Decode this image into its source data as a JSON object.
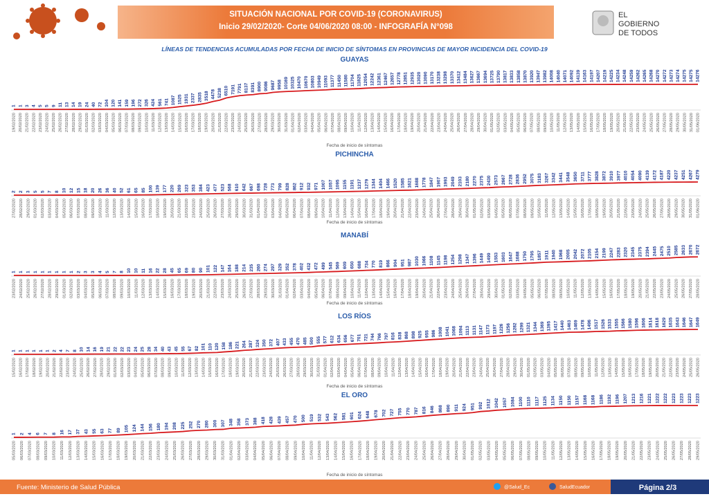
{
  "header": {
    "title_line1": "SITUACIÓN NACIONAL POR  COVID-19 (CORONAVIRUS)",
    "title_line2": "Inicio 29/02/2020- Corte 04/06/2020 08:00  - INFOGRAFÍA N°098",
    "logo_line1": "EL",
    "logo_line2": "GOBIERNO",
    "logo_line3": "DE TODOS",
    "subtitle": "LÍNEAS DE TENDENCIAS ACUMULADAS POR FECHA DE INICIO DE SÍNTOMAS EN PROVINCIAS DE MAYOR INCIDENCIA DEL COVID-19"
  },
  "footer": {
    "source": "Fuente: Ministerio de Salud Pública",
    "twitter": "@Salud_Ec",
    "facebook": "SaludEcuador",
    "page": "Página 2/3"
  },
  "chart_data": [
    {
      "type": "line",
      "title": "GUAYAS",
      "x_label": "Fecha de inicio de síntomas",
      "color": "#d7191c",
      "label_color": "#1f3a93",
      "ylim": [
        0,
        15000
      ],
      "categories": [
        "19/02/2020",
        "20/02/2020",
        "21/02/2020",
        "22/02/2020",
        "23/02/2020",
        "24/02/2020",
        "25/02/2020",
        "26/02/2020",
        "27/02/2020",
        "28/02/2020",
        "29/02/2020",
        "01/03/2020",
        "02/03/2020",
        "03/03/2020",
        "04/03/2020",
        "05/03/2020",
        "06/03/2020",
        "07/03/2020",
        "08/03/2020",
        "09/03/2020",
        "10/03/2020",
        "11/03/2020",
        "12/03/2020",
        "13/03/2020",
        "14/03/2020",
        "15/03/2020",
        "16/03/2020",
        "17/03/2020",
        "18/03/2020",
        "19/03/2020",
        "20/03/2020",
        "21/03/2020",
        "22/03/2020",
        "23/03/2020",
        "24/03/2020",
        "25/03/2020",
        "26/03/2020",
        "27/03/2020",
        "28/03/2020",
        "29/03/2020",
        "30/03/2020",
        "31/03/2020",
        "01/04/2020",
        "02/04/2020",
        "03/04/2020",
        "04/04/2020",
        "05/04/2020",
        "06/04/2020",
        "07/04/2020",
        "08/04/2020",
        "09/04/2020",
        "10/04/2020",
        "11/04/2020",
        "12/04/2020",
        "13/04/2020",
        "14/04/2020",
        "15/04/2020",
        "16/04/2020",
        "17/04/2020",
        "18/04/2020",
        "19/04/2020",
        "20/04/2020",
        "21/04/2020",
        "22/04/2020",
        "23/04/2020",
        "24/04/2020",
        "25/04/2020",
        "26/04/2020",
        "27/04/2020",
        "28/04/2020",
        "29/04/2020",
        "30/04/2020",
        "01/05/2020",
        "02/05/2020",
        "03/05/2020",
        "04/05/2020",
        "05/05/2020",
        "06/05/2020",
        "07/05/2020",
        "08/05/2020",
        "09/05/2020",
        "10/05/2020",
        "11/05/2020",
        "12/05/2020",
        "13/05/2020",
        "14/05/2020",
        "15/05/2020",
        "16/05/2020",
        "17/05/2020",
        "18/05/2020",
        "19/05/2020",
        "20/05/2020",
        "21/05/2020",
        "22/05/2020",
        "23/05/2020",
        "24/05/2020",
        "25/05/2020",
        "26/05/2020",
        "27/05/2020",
        "28/05/2020",
        "29/05/2020",
        "30/05/2020",
        "31/05/2020",
        "01/06/2020"
      ],
      "values": [
        1,
        1,
        3,
        4,
        5,
        5,
        9,
        11,
        13,
        14,
        19,
        24,
        40,
        72,
        104,
        120,
        141,
        159,
        196,
        272,
        326,
        424,
        561,
        741,
        1087,
        1525,
        1931,
        2337,
        2835,
        3518,
        4478,
        5238,
        6510,
        7191,
        7791,
        8137,
        8391,
        8900,
        9086,
        9687,
        9958,
        10169,
        10325,
        10470,
        10670,
        10803,
        10949,
        11093,
        11377,
        11450,
        11580,
        11704,
        11825,
        12054,
        12242,
        12361,
        12467,
        12657,
        12778,
        12851,
        12935,
        13020,
        13090,
        13170,
        13238,
        13298,
        13370,
        13412,
        13484,
        13627,
        13667,
        13694,
        13725,
        13790,
        13817,
        13833,
        13858,
        13870,
        13920,
        13947,
        13982,
        14008,
        14040,
        14071,
        14092,
        14139,
        14163,
        14197,
        14207,
        14219,
        14225,
        14234,
        14248,
        14259,
        14262,
        14265,
        14268,
        14270,
        14272,
        14273,
        14274,
        14275,
        14275,
        14276
      ]
    },
    {
      "type": "line",
      "title": "PICHINCHA",
      "x_label": "Fecha de inicio de síntomas",
      "color": "#d7191c",
      "label_color": "#1f3a93",
      "ylim": [
        0,
        4500
      ],
      "categories": [
        "27/02/2020",
        "28/02/2020",
        "29/02/2020",
        "01/03/2020",
        "02/03/2020",
        "03/03/2020",
        "04/03/2020",
        "05/03/2020",
        "06/03/2020",
        "07/03/2020",
        "08/03/2020",
        "09/03/2020",
        "10/03/2020",
        "11/03/2020",
        "12/03/2020",
        "13/03/2020",
        "14/03/2020",
        "15/03/2020",
        "16/03/2020",
        "17/03/2020",
        "18/03/2020",
        "19/03/2020",
        "20/03/2020",
        "21/03/2020",
        "22/03/2020",
        "23/03/2020",
        "24/03/2020",
        "25/03/2020",
        "26/03/2020",
        "27/03/2020",
        "28/03/2020",
        "29/03/2020",
        "30/03/2020",
        "31/03/2020",
        "01/04/2020",
        "02/04/2020",
        "03/04/2020",
        "04/04/2020",
        "05/04/2020",
        "06/04/2020",
        "07/04/2020",
        "08/04/2020",
        "09/04/2020",
        "10/04/2020",
        "11/04/2020",
        "12/04/2020",
        "13/04/2020",
        "14/04/2020",
        "15/04/2020",
        "16/04/2020",
        "17/04/2020",
        "18/04/2020",
        "19/04/2020",
        "20/04/2020",
        "21/04/2020",
        "22/04/2020",
        "23/04/2020",
        "24/04/2020",
        "25/04/2020",
        "26/04/2020",
        "27/04/2020",
        "28/04/2020",
        "29/04/2020",
        "30/04/2020",
        "01/05/2020",
        "02/05/2020",
        "03/05/2020",
        "04/05/2020",
        "05/05/2020",
        "06/05/2020",
        "07/05/2020",
        "08/05/2020",
        "09/05/2020",
        "10/05/2020",
        "11/05/2020",
        "12/05/2020",
        "13/05/2020",
        "14/05/2020",
        "15/05/2020",
        "16/05/2020",
        "17/05/2020",
        "18/05/2020",
        "19/05/2020",
        "20/05/2020",
        "21/05/2020",
        "22/05/2020",
        "23/05/2020",
        "24/05/2020",
        "25/05/2020",
        "26/05/2020",
        "27/05/2020",
        "28/05/2020",
        "29/05/2020",
        "30/05/2020",
        "31/05/2020",
        "01/06/2020"
      ],
      "values": [
        2,
        2,
        3,
        5,
        5,
        7,
        8,
        10,
        12,
        15,
        18,
        20,
        26,
        36,
        40,
        52,
        61,
        65,
        85,
        100,
        139,
        177,
        220,
        269,
        323,
        353,
        384,
        423,
        477,
        523,
        568,
        610,
        642,
        667,
        698,
        728,
        773,
        799,
        828,
        862,
        912,
        932,
        971,
        1007,
        1057,
        1095,
        1155,
        1191,
        1237,
        1279,
        1344,
        1404,
        1466,
        1520,
        1585,
        1621,
        1688,
        1778,
        1847,
        1907,
        1993,
        2049,
        2103,
        2180,
        2270,
        2375,
        2430,
        2573,
        2667,
        2728,
        2836,
        2952,
        3075,
        3183,
        3267,
        3342,
        3441,
        3548,
        3650,
        3711,
        3777,
        3828,
        3872,
        3910,
        3977,
        4010,
        4054,
        4090,
        4139,
        4172,
        4187,
        4220,
        4237,
        4251,
        4267,
        4279
      ]
    },
    {
      "type": "line",
      "title": "MANABÍ",
      "x_label": "Fecha de inicio de síntomas",
      "color": "#d7191c",
      "label_color": "#1f3a93",
      "ylim": [
        0,
        2800
      ],
      "categories": [
        "23/02/2020",
        "24/02/2020",
        "25/02/2020",
        "26/02/2020",
        "27/02/2020",
        "28/02/2020",
        "29/02/2020",
        "01/03/2020",
        "02/03/2020",
        "03/03/2020",
        "04/03/2020",
        "05/03/2020",
        "06/03/2020",
        "07/03/2020",
        "08/03/2020",
        "09/03/2020",
        "10/03/2020",
        "11/03/2020",
        "12/03/2020",
        "13/03/2020",
        "14/03/2020",
        "15/03/2020",
        "16/03/2020",
        "17/03/2020",
        "18/03/2020",
        "19/03/2020",
        "20/03/2020",
        "21/03/2020",
        "22/03/2020",
        "23/03/2020",
        "24/03/2020",
        "25/03/2020",
        "26/03/2020",
        "27/03/2020",
        "28/03/2020",
        "29/03/2020",
        "30/03/2020",
        "31/03/2020",
        "01/04/2020",
        "02/04/2020",
        "03/04/2020",
        "04/04/2020",
        "05/04/2020",
        "06/04/2020",
        "07/04/2020",
        "08/04/2020",
        "09/04/2020",
        "10/04/2020",
        "11/04/2020",
        "12/04/2020",
        "13/04/2020",
        "14/04/2020",
        "15/04/2020",
        "16/04/2020",
        "17/04/2020",
        "18/04/2020",
        "19/04/2020",
        "20/04/2020",
        "21/04/2020",
        "22/04/2020",
        "23/04/2020",
        "24/04/2020",
        "25/04/2020",
        "26/04/2020",
        "27/04/2020",
        "28/04/2020",
        "29/04/2020",
        "30/04/2020",
        "01/05/2020",
        "02/05/2020",
        "03/05/2020",
        "04/05/2020",
        "05/05/2020",
        "06/05/2020",
        "07/05/2020",
        "08/05/2020",
        "09/05/2020",
        "10/05/2020",
        "11/05/2020",
        "12/05/2020",
        "13/05/2020",
        "14/05/2020",
        "15/05/2020",
        "16/05/2020",
        "17/05/2020",
        "18/05/2020",
        "19/05/2020",
        "20/05/2020",
        "21/05/2020",
        "22/05/2020",
        "23/05/2020",
        "24/05/2020",
        "25/05/2020",
        "26/05/2020",
        "27/05/2020",
        "28/05/2020"
      ],
      "values": [
        1,
        1,
        1,
        1,
        1,
        1,
        1,
        1,
        1,
        2,
        3,
        3,
        4,
        5,
        7,
        8,
        10,
        10,
        11,
        16,
        22,
        28,
        45,
        65,
        69,
        80,
        90,
        101,
        122,
        147,
        164,
        188,
        214,
        235,
        260,
        274,
        297,
        329,
        352,
        378,
        402,
        432,
        472,
        499,
        545,
        569,
        609,
        650,
        688,
        734,
        770,
        819,
        866,
        904,
        951,
        987,
        1030,
        1066,
        1108,
        1145,
        1198,
        1254,
        1298,
        1347,
        1396,
        1449,
        1499,
        1553,
        1603,
        1647,
        1688,
        1750,
        1795,
        1857,
        1911,
        1940,
        1968,
        2005,
        2042,
        2072,
        2105,
        2154,
        2199,
        2247,
        2283,
        2320,
        2345,
        2375,
        2394,
        2445,
        2475,
        2510,
        2585,
        2633,
        2670,
        2672
      ]
    },
    {
      "type": "line",
      "title": "LOS RÍOS",
      "x_label": "Fecha de inicio de síntomas",
      "color": "#d7191c",
      "label_color": "#1f3a93",
      "ylim": [
        0,
        1700
      ],
      "categories": [
        "15/02/2020",
        "16/02/2020",
        "17/02/2020",
        "18/02/2020",
        "19/02/2020",
        "20/02/2020",
        "21/02/2020",
        "22/02/2020",
        "23/02/2020",
        "24/02/2020",
        "25/02/2020",
        "26/02/2020",
        "27/02/2020",
        "28/02/2020",
        "29/02/2020",
        "01/03/2020",
        "02/03/2020",
        "03/03/2020",
        "04/03/2020",
        "05/03/2020",
        "06/03/2020",
        "07/03/2020",
        "08/03/2020",
        "09/03/2020",
        "10/03/2020",
        "11/03/2020",
        "12/03/2020",
        "13/03/2020",
        "14/03/2020",
        "15/03/2020",
        "16/03/2020",
        "17/03/2020",
        "18/03/2020",
        "19/03/2020",
        "20/03/2020",
        "21/03/2020",
        "22/03/2020",
        "23/03/2020",
        "24/03/2020",
        "25/03/2020",
        "26/03/2020",
        "27/03/2020",
        "28/03/2020",
        "29/03/2020",
        "30/03/2020",
        "31/03/2020",
        "01/04/2020",
        "02/04/2020",
        "03/04/2020",
        "04/04/2020",
        "05/04/2020",
        "06/04/2020",
        "07/04/2020",
        "08/04/2020",
        "09/04/2020",
        "10/04/2020",
        "11/04/2020",
        "12/04/2020",
        "13/04/2020",
        "14/04/2020",
        "15/04/2020",
        "16/04/2020",
        "17/04/2020",
        "18/04/2020",
        "19/04/2020",
        "20/04/2020",
        "21/04/2020",
        "22/04/2020",
        "23/04/2020",
        "24/04/2020",
        "25/04/2020",
        "26/04/2020",
        "27/04/2020",
        "28/04/2020",
        "29/04/2020",
        "30/04/2020",
        "01/05/2020",
        "02/05/2020",
        "03/05/2020",
        "04/05/2020",
        "05/05/2020",
        "06/05/2020",
        "07/05/2020",
        "08/05/2020",
        "09/05/2020",
        "10/05/2020",
        "11/05/2020",
        "12/05/2020",
        "13/05/2020",
        "14/05/2020",
        "15/05/2020",
        "16/05/2020",
        "17/05/2020",
        "18/05/2020",
        "19/05/2020",
        "20/05/2020",
        "21/05/2020",
        "22/05/2020",
        "23/05/2020",
        "24/05/2020",
        "25/05/2020",
        "26/05/2020"
      ],
      "values": [
        1,
        1,
        1,
        1,
        1,
        1,
        2,
        4,
        7,
        8,
        10,
        14,
        16,
        19,
        21,
        22,
        22,
        23,
        24,
        25,
        28,
        34,
        40,
        43,
        45,
        55,
        67,
        82,
        101,
        110,
        120,
        158,
        186,
        221,
        264,
        287,
        324,
        350,
        372,
        407,
        433,
        455,
        470,
        485,
        500,
        555,
        577,
        612,
        634,
        656,
        677,
        701,
        721,
        744,
        766,
        797,
        816,
        838,
        868,
        898,
        925,
        955,
        986,
        1008,
        1041,
        1068,
        1094,
        1113,
        1131,
        1147,
        1173,
        1197,
        1226,
        1256,
        1282,
        1299,
        1321,
        1344,
        1369,
        1395,
        1417,
        1440,
        1463,
        1469,
        1478,
        1496,
        1517,
        1526,
        1533,
        1555,
        1566,
        1580,
        1596,
        1606,
        1614,
        1618,
        1629,
        1635,
        1643,
        1646,
        1647,
        1649
      ]
    },
    {
      "type": "line",
      "title": "EL ORO",
      "x_label": "Fecha de inicio de síntomas",
      "color": "#d7191c",
      "label_color": "#1f3a93",
      "ylim": [
        0,
        1250
      ],
      "categories": [
        "05/03/2020",
        "06/03/2020",
        "07/03/2020",
        "08/03/2020",
        "09/03/2020",
        "10/03/2020",
        "11/03/2020",
        "12/03/2020",
        "13/03/2020",
        "14/03/2020",
        "15/03/2020",
        "16/03/2020",
        "17/03/2020",
        "18/03/2020",
        "19/03/2020",
        "20/03/2020",
        "21/03/2020",
        "22/03/2020",
        "23/03/2020",
        "24/03/2020",
        "25/03/2020",
        "26/03/2020",
        "27/03/2020",
        "28/03/2020",
        "29/03/2020",
        "30/03/2020",
        "31/03/2020",
        "01/04/2020",
        "02/04/2020",
        "03/04/2020",
        "04/04/2020",
        "05/04/2020",
        "06/04/2020",
        "07/04/2020",
        "08/04/2020",
        "09/04/2020",
        "10/04/2020",
        "11/04/2020",
        "12/04/2020",
        "13/04/2020",
        "14/04/2020",
        "15/04/2020",
        "16/04/2020",
        "17/04/2020",
        "18/04/2020",
        "19/04/2020",
        "20/04/2020",
        "21/04/2020",
        "22/04/2020",
        "23/04/2020",
        "24/04/2020",
        "25/04/2020",
        "26/04/2020",
        "27/04/2020",
        "28/04/2020",
        "29/04/2020",
        "30/04/2020",
        "01/05/2020",
        "02/05/2020",
        "03/05/2020",
        "04/05/2020",
        "05/05/2020",
        "06/05/2020",
        "07/05/2020",
        "08/05/2020",
        "09/05/2020",
        "10/05/2020",
        "11/05/2020",
        "12/05/2020",
        "13/05/2020",
        "14/05/2020",
        "15/05/2020",
        "16/05/2020",
        "17/05/2020",
        "18/05/2020",
        "19/05/2020",
        "20/05/2020",
        "21/05/2020",
        "22/05/2020",
        "23/05/2020",
        "24/05/2020",
        "25/05/2020",
        "26/05/2020",
        "27/05/2020",
        "28/05/2020",
        "29/05/2020"
      ],
      "values": [
        1,
        2,
        4,
        6,
        7,
        8,
        16,
        17,
        37,
        43,
        55,
        63,
        77,
        89,
        105,
        124,
        144,
        156,
        180,
        194,
        208,
        225,
        252,
        270,
        280,
        300,
        307,
        348,
        358,
        373,
        388,
        418,
        428,
        439,
        457,
        470,
        500,
        519,
        532,
        543,
        562,
        581,
        601,
        624,
        648,
        678,
        702,
        727,
        755,
        770,
        787,
        816,
        846,
        868,
        890,
        911,
        924,
        951,
        992,
        1012,
        1042,
        1057,
        1084,
        1100,
        1110,
        1117,
        1125,
        1134,
        1150,
        1150,
        1157,
        1168,
        1168,
        1186,
        1192,
        1196,
        1207,
        1213,
        1216,
        1221,
        1222,
        1222,
        1223,
        1223,
        1223,
        1223
      ]
    }
  ]
}
